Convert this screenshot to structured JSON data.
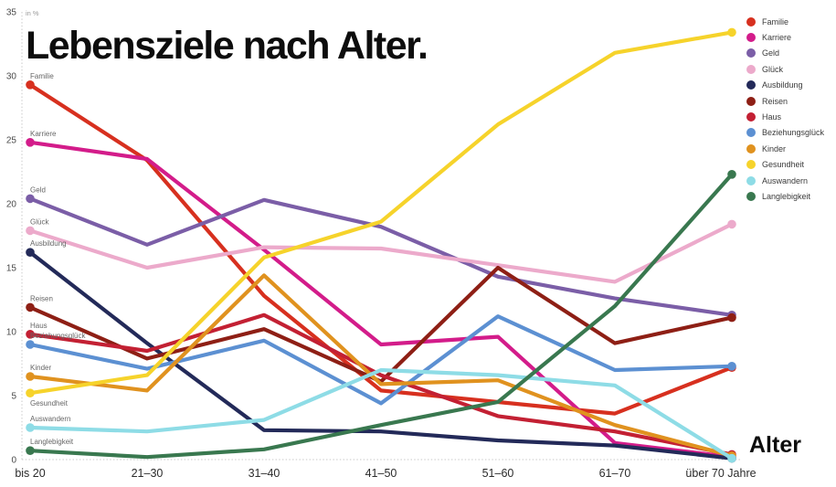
{
  "title": "Lebensziele nach Alter.",
  "y_axis": {
    "unit_label": "in %",
    "min": 0,
    "max": 35,
    "tick_step": 5,
    "tick_labels": [
      "0",
      "5",
      "10",
      "15",
      "20",
      "25",
      "30",
      "35"
    ]
  },
  "x_axis": {
    "title": "Alter",
    "categories": [
      "bis 20",
      "21–30",
      "31–40",
      "41–50",
      "51–60",
      "61–70",
      "über 70 Jahre"
    ]
  },
  "chart_data": {
    "type": "line",
    "title": "Lebensziele nach Alter.",
    "ylabel": "in %",
    "xlabel": "Alter",
    "ylim": [
      0,
      35
    ],
    "grid": "dotted left and bottom axis only",
    "legend_position": "top-right",
    "point_markers": "dots on first and last point of each line",
    "categories": [
      "bis 20",
      "21–30",
      "31–40",
      "41–50",
      "51–60",
      "61–70",
      "über 70 Jahre"
    ],
    "series": [
      {
        "name": "Familie",
        "color": "#d7301f",
        "values": [
          29.3,
          23.4,
          12.8,
          5.4,
          4.5,
          3.6,
          7.2
        ]
      },
      {
        "name": "Karriere",
        "color": "#d31c8a",
        "values": [
          24.8,
          23.5,
          16.4,
          9.0,
          9.6,
          1.3,
          0.2
        ]
      },
      {
        "name": "Geld",
        "color": "#7b5ea7",
        "values": [
          20.4,
          16.8,
          20.3,
          18.2,
          14.3,
          12.6,
          11.3
        ]
      },
      {
        "name": "Glück",
        "color": "#ecaacb",
        "values": [
          17.9,
          15.0,
          16.6,
          16.5,
          15.2,
          13.9,
          18.4
        ]
      },
      {
        "name": "Ausbildung",
        "color": "#232a59",
        "values": [
          16.2,
          9.1,
          2.3,
          2.2,
          1.5,
          1.1,
          0.1
        ]
      },
      {
        "name": "Reisen",
        "color": "#8e1f15",
        "values": [
          11.9,
          7.9,
          10.2,
          6.1,
          15.0,
          9.1,
          11.1
        ]
      },
      {
        "name": "Haus",
        "color": "#c32033",
        "values": [
          9.8,
          8.5,
          11.3,
          6.6,
          3.4,
          2.2,
          0.4
        ]
      },
      {
        "name": "Beziehungsglück",
        "color": "#5c90d2",
        "values": [
          9.0,
          7.1,
          9.3,
          4.4,
          11.2,
          7.0,
          7.3
        ]
      },
      {
        "name": "Kinder",
        "color": "#e0921f",
        "values": [
          6.5,
          5.4,
          14.4,
          5.9,
          6.2,
          2.7,
          0.3
        ]
      },
      {
        "name": "Gesundheit",
        "color": "#f6d32b",
        "values": [
          5.2,
          6.6,
          15.8,
          18.6,
          26.2,
          31.8,
          33.4
        ]
      },
      {
        "name": "Auswandern",
        "color": "#8edce6",
        "values": [
          2.5,
          2.2,
          3.1,
          7.0,
          6.6,
          5.8,
          0.1
        ]
      },
      {
        "name": "Langlebigkeit",
        "color": "#39784f",
        "values": [
          0.7,
          0.2,
          0.8,
          2.7,
          4.5,
          12.0,
          22.3
        ]
      }
    ]
  }
}
